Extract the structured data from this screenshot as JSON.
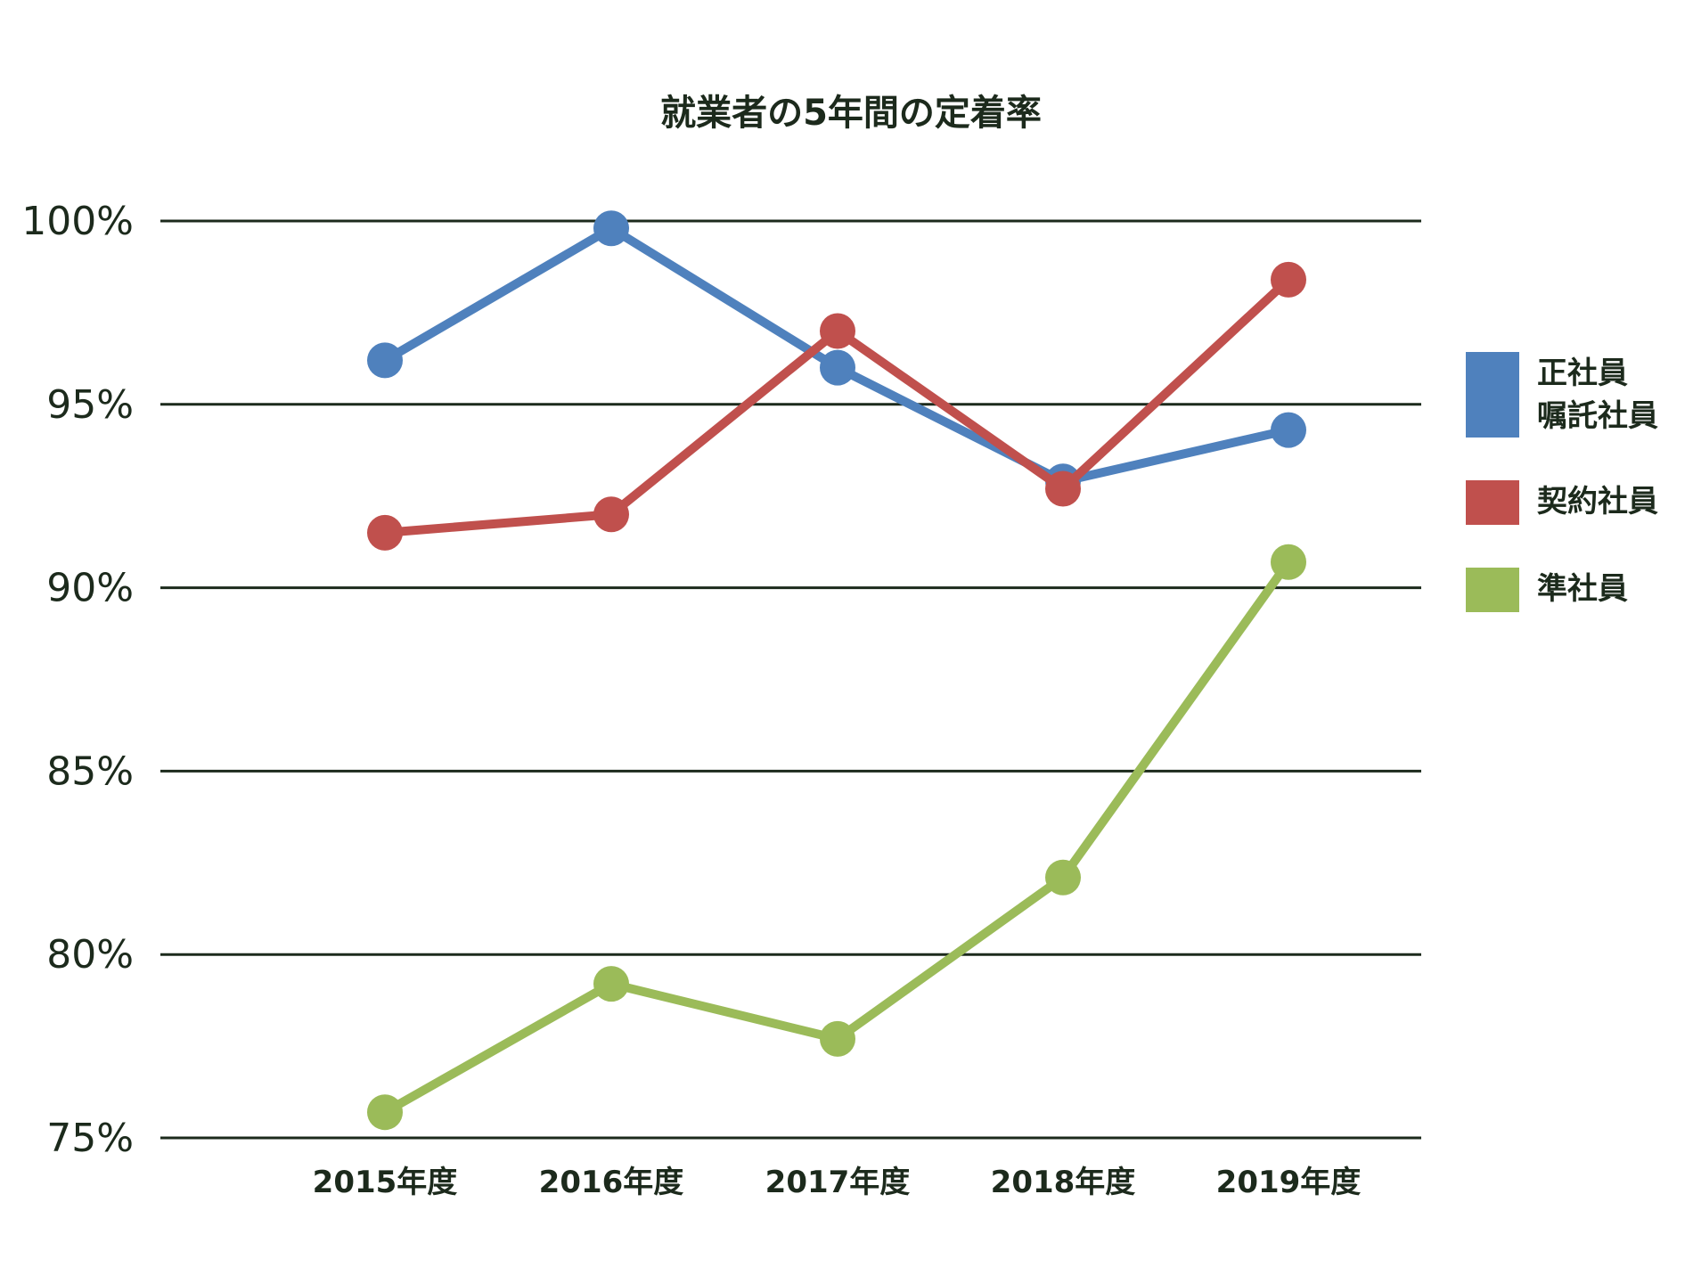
{
  "chart_data": {
    "type": "line",
    "title": "就業者の5年間の定着率",
    "xlabel": "",
    "ylabel": "",
    "categories": [
      "2015年度",
      "2016年度",
      "2017年度",
      "2018年度",
      "2019年度"
    ],
    "ylim": [
      75,
      100
    ],
    "yticks": [
      75,
      80,
      85,
      90,
      95,
      100
    ],
    "ytick_labels": [
      "75%",
      "80%",
      "85%",
      "90%",
      "95%",
      "100%"
    ],
    "grid": true,
    "legend_position": "right",
    "series": [
      {
        "name": "正社員\n嘱託社員",
        "legend_lines": [
          "正社員",
          "嘱託社員"
        ],
        "color": "#4f81bd",
        "values": [
          96.2,
          99.8,
          96.0,
          92.9,
          94.3
        ]
      },
      {
        "name": "契約社員",
        "legend_lines": [
          "契約社員"
        ],
        "color": "#c0504d",
        "values": [
          91.5,
          92.0,
          97.0,
          92.7,
          98.4
        ]
      },
      {
        "name": "準社員",
        "legend_lines": [
          "準社員"
        ],
        "color": "#9bbb59",
        "values": [
          75.7,
          79.2,
          77.7,
          82.1,
          90.7
        ]
      }
    ]
  }
}
